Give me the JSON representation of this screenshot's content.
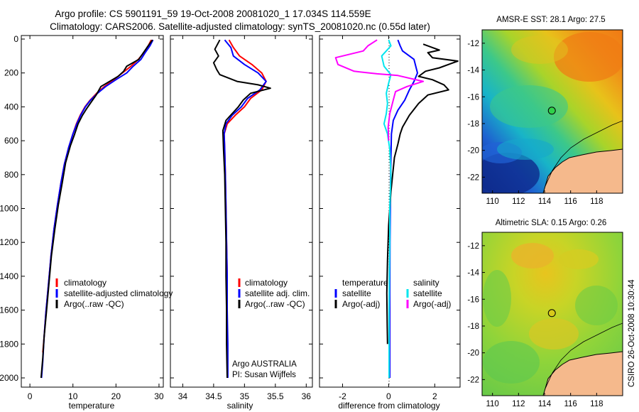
{
  "figure": {
    "title_line1": "Argo profile: CS 5901191_59 19-Oct-2008 20081020_1 17.034S 114.559E",
    "title_line2": "Climatology: CARS2006. Satellite-adjusted climatology: synTS_20081020.nc (0.55d later)",
    "side_caption": "CSIRO 26-Oct-2008 10:30:44"
  },
  "chart_data": [
    {
      "type": "line",
      "xlabel": "temperature",
      "ylabel": "",
      "xlim": [
        -2,
        31
      ],
      "ylim": [
        2050,
        0
      ],
      "xticks": [
        "0",
        "10",
        "20",
        "30"
      ],
      "xtick_values": [
        0,
        10,
        20,
        30
      ],
      "yticks": [
        "0",
        "200",
        "400",
        "600",
        "800",
        "1000",
        "1200",
        "1400",
        "1600",
        "1800",
        "2000"
      ],
      "ytick_values": [
        0,
        200,
        400,
        600,
        800,
        1000,
        1200,
        1400,
        1600,
        1800,
        2000
      ],
      "legend": [
        "climatology",
        "satellite-adjusted climatology",
        "Argo(..raw -QC)"
      ],
      "legend_position": "lower-right",
      "series": [
        {
          "name": "climatology",
          "color": "#ff0000",
          "points": [
            [
              28.2,
              5
            ],
            [
              27.5,
              40
            ],
            [
              26.5,
              80
            ],
            [
              25.2,
              120
            ],
            [
              23.5,
              160
            ],
            [
              21.5,
              200
            ],
            [
              19.5,
              240
            ],
            [
              17.3,
              280
            ],
            [
              15.5,
              320
            ],
            [
              14.0,
              360
            ],
            [
              12.8,
              400
            ],
            [
              11.7,
              450
            ],
            [
              10.8,
              500
            ],
            [
              10.0,
              560
            ],
            [
              9.0,
              640
            ],
            [
              8.0,
              740
            ],
            [
              7.2,
              850
            ],
            [
              6.4,
              980
            ],
            [
              5.6,
              1120
            ],
            [
              4.9,
              1280
            ],
            [
              4.3,
              1450
            ],
            [
              3.7,
              1620
            ],
            [
              3.3,
              1760
            ],
            [
              3.0,
              1850
            ]
          ]
        },
        {
          "name": "satellite-adjusted climatology",
          "color": "#0000ff",
          "points": [
            [
              28.6,
              5
            ],
            [
              27.9,
              40
            ],
            [
              26.8,
              80
            ],
            [
              25.8,
              120
            ],
            [
              24.0,
              160
            ],
            [
              22.5,
              200
            ],
            [
              20.0,
              240
            ],
            [
              17.6,
              280
            ],
            [
              15.7,
              320
            ],
            [
              14.1,
              360
            ],
            [
              12.9,
              400
            ],
            [
              11.8,
              450
            ],
            [
              10.9,
              500
            ],
            [
              10.0,
              560
            ],
            [
              9.0,
              640
            ],
            [
              8.0,
              740
            ],
            [
              7.2,
              850
            ],
            [
              6.4,
              980
            ],
            [
              5.6,
              1120
            ],
            [
              4.9,
              1280
            ],
            [
              4.3,
              1450
            ],
            [
              3.7,
              1620
            ],
            [
              3.3,
              1760
            ],
            [
              3.0,
              1900
            ],
            [
              2.7,
              2000
            ]
          ]
        },
        {
          "name": "Argo(..raw -QC)",
          "color": "#000000",
          "points": [
            [
              28.5,
              5
            ],
            [
              27.2,
              50
            ],
            [
              26.4,
              80
            ],
            [
              25.3,
              120
            ],
            [
              22.5,
              160
            ],
            [
              21.8,
              190
            ],
            [
              20.5,
              220
            ],
            [
              16.5,
              280
            ],
            [
              15.4,
              330
            ],
            [
              14.3,
              370
            ],
            [
              13.2,
              410
            ],
            [
              12.2,
              450
            ],
            [
              11.2,
              500
            ],
            [
              10.4,
              560
            ],
            [
              9.4,
              630
            ],
            [
              8.3,
              730
            ],
            [
              7.5,
              850
            ],
            [
              6.6,
              980
            ],
            [
              5.8,
              1120
            ],
            [
              5.0,
              1280
            ],
            [
              4.4,
              1450
            ],
            [
              3.8,
              1620
            ],
            [
              3.3,
              1760
            ],
            [
              3.0,
              1880
            ],
            [
              2.6,
              2000
            ]
          ]
        }
      ]
    },
    {
      "type": "line",
      "xlabel": "salinity",
      "ylabel": "",
      "xlim": [
        33.8,
        36.1
      ],
      "ylim": [
        2050,
        0
      ],
      "xticks": [
        "34",
        "34.5",
        "35",
        "35.5",
        "36"
      ],
      "xtick_values": [
        34,
        34.5,
        35,
        35.5,
        36
      ],
      "legend": [
        "climatology",
        "satellite adj. clim.",
        "Argo(..raw -QC)"
      ],
      "legend_position": "lower-right",
      "annotation": [
        "Argo AUSTRALIA",
        "PI: Susan Wijffels"
      ],
      "series": [
        {
          "name": "climatology",
          "color": "#ff0000",
          "points": [
            [
              34.75,
              5
            ],
            [
              34.82,
              50
            ],
            [
              34.92,
              100
            ],
            [
              35.12,
              150
            ],
            [
              35.28,
              200
            ],
            [
              35.35,
              250
            ],
            [
              35.28,
              300
            ],
            [
              35.1,
              350
            ],
            [
              35.0,
              400
            ],
            [
              34.85,
              450
            ],
            [
              34.72,
              500
            ],
            [
              34.67,
              560
            ],
            [
              34.68,
              650
            ],
            [
              34.69,
              800
            ],
            [
              34.7,
              1000
            ],
            [
              34.71,
              1200
            ],
            [
              34.72,
              1400
            ],
            [
              34.72,
              1600
            ],
            [
              34.72,
              1800
            ]
          ]
        },
        {
          "name": "satellite adj. clim.",
          "color": "#0000ff",
          "points": [
            [
              34.68,
              5
            ],
            [
              34.78,
              50
            ],
            [
              34.82,
              100
            ],
            [
              35.0,
              150
            ],
            [
              35.22,
              200
            ],
            [
              35.35,
              250
            ],
            [
              35.25,
              300
            ],
            [
              35.05,
              350
            ],
            [
              34.95,
              400
            ],
            [
              34.8,
              450
            ],
            [
              34.7,
              500
            ],
            [
              34.67,
              560
            ],
            [
              34.68,
              650
            ],
            [
              34.69,
              800
            ],
            [
              34.7,
              1000
            ],
            [
              34.71,
              1200
            ],
            [
              34.72,
              1400
            ],
            [
              34.72,
              1600
            ],
            [
              34.73,
              1800
            ],
            [
              34.73,
              2000
            ]
          ]
        },
        {
          "name": "Argo(..raw -QC)",
          "color": "#000000",
          "points": [
            [
              34.6,
              5
            ],
            [
              34.52,
              60
            ],
            [
              34.58,
              100
            ],
            [
              34.5,
              140
            ],
            [
              34.55,
              180
            ],
            [
              34.6,
              210
            ],
            [
              34.88,
              250
            ],
            [
              35.22,
              270
            ],
            [
              35.42,
              290
            ],
            [
              35.1,
              320
            ],
            [
              34.98,
              360
            ],
            [
              34.9,
              400
            ],
            [
              34.8,
              440
            ],
            [
              34.7,
              480
            ],
            [
              34.65,
              540
            ],
            [
              34.66,
              650
            ],
            [
              34.68,
              800
            ],
            [
              34.69,
              1000
            ],
            [
              34.7,
              1200
            ],
            [
              34.7,
              1400
            ],
            [
              34.71,
              1600
            ],
            [
              34.71,
              1800
            ],
            [
              34.72,
              2000
            ]
          ]
        }
      ]
    },
    {
      "type": "line",
      "xlabel": "difference from climatology",
      "ylabel": "",
      "xlim": [
        -3,
        3.1
      ],
      "ylim": [
        2050,
        0
      ],
      "xticks": [
        "-2",
        "0",
        "2"
      ],
      "xtick_values": [
        -2,
        0,
        2
      ],
      "legend_headers": [
        "temperature",
        "salinity"
      ],
      "legend": [
        "satellite",
        "Argo(-adj)",
        "satellite",
        "Argo(-adj)"
      ],
      "legend_position": "lower",
      "series": [
        {
          "name": "satellite",
          "group": "temperature",
          "color": "#0000ff",
          "points": [
            [
              0.4,
              5
            ],
            [
              0.5,
              40
            ],
            [
              0.6,
              70
            ],
            [
              1.1,
              120
            ],
            [
              1.25,
              200
            ],
            [
              1.1,
              250
            ],
            [
              0.9,
              300
            ],
            [
              0.7,
              360
            ],
            [
              0.4,
              420
            ],
            [
              0.2,
              480
            ],
            [
              0.12,
              560
            ],
            [
              0.1,
              700
            ],
            [
              0.08,
              900
            ],
            [
              0.06,
              1200
            ],
            [
              0.05,
              1500
            ],
            [
              0.05,
              1800
            ],
            [
              0.05,
              2000
            ]
          ]
        },
        {
          "name": "Argo(-adj)",
          "group": "temperature",
          "color": "#000000",
          "points": [
            [
              1.5,
              30
            ],
            [
              1.9,
              50
            ],
            [
              2.2,
              65
            ],
            [
              1.7,
              80
            ],
            [
              1.9,
              110
            ],
            [
              3.0,
              130
            ],
            [
              2.2,
              170
            ],
            [
              1.6,
              190
            ],
            [
              1.3,
              220
            ],
            [
              1.9,
              240
            ],
            [
              2.4,
              270
            ],
            [
              2.6,
              300
            ],
            [
              1.7,
              330
            ],
            [
              1.3,
              380
            ],
            [
              0.9,
              450
            ],
            [
              0.6,
              520
            ],
            [
              0.5,
              560
            ],
            [
              0.4,
              620
            ],
            [
              0.25,
              700
            ],
            [
              0.1,
              900
            ],
            [
              0.0,
              1100
            ],
            [
              -0.05,
              1300
            ],
            [
              -0.08,
              1500
            ],
            [
              -0.06,
              1700
            ],
            [
              -0.05,
              1800
            ]
          ]
        },
        {
          "name": "satellite",
          "group": "salinity",
          "color": "#00e5ee",
          "points": [
            [
              0.0,
              5
            ],
            [
              0.1,
              40
            ],
            [
              -0.3,
              100
            ],
            [
              -0.2,
              160
            ],
            [
              0.1,
              210
            ],
            [
              0.0,
              260
            ],
            [
              -0.1,
              320
            ],
            [
              -0.05,
              380
            ],
            [
              -0.1,
              440
            ],
            [
              -0.2,
              500
            ],
            [
              -0.05,
              560
            ],
            [
              0.05,
              650
            ],
            [
              0.1,
              800
            ],
            [
              0.05,
              1000
            ],
            [
              0.05,
              1200
            ],
            [
              0.03,
              1400
            ],
            [
              0.02,
              1600
            ],
            [
              0.02,
              1800
            ],
            [
              0.02,
              2000
            ]
          ]
        },
        {
          "name": "Argo(-adj)",
          "group": "salinity",
          "color": "#ff00ff",
          "points": [
            [
              -0.5,
              5
            ],
            [
              -0.9,
              40
            ],
            [
              -1.1,
              70
            ],
            [
              -2.3,
              110
            ],
            [
              -2.2,
              150
            ],
            [
              -1.5,
              190
            ],
            [
              -0.5,
              205
            ],
            [
              0.4,
              215
            ],
            [
              1.5,
              250
            ],
            [
              0.8,
              280
            ],
            [
              0.3,
              310
            ],
            [
              0.2,
              360
            ],
            [
              0.05,
              440
            ],
            [
              -0.02,
              520
            ],
            [
              0.0,
              600
            ]
          ]
        }
      ]
    }
  ],
  "maps": [
    {
      "title": "AMSR-E SST: 28.1 Argo: 27.5",
      "xticks": [
        "110",
        "112",
        "114",
        "116",
        "118"
      ],
      "xtick_values": [
        110,
        112,
        114,
        116,
        118
      ],
      "yticks": [
        "-12",
        "-14",
        "-16",
        "-18",
        "-20",
        "-22"
      ],
      "ytick_values": [
        -12,
        -14,
        -16,
        -18,
        -20,
        -22
      ],
      "xlim": [
        109.2,
        120
      ],
      "ylim": [
        -23.2,
        -11
      ],
      "argo_location": [
        114.559,
        -17.034
      ],
      "land_color": "#f5b98c",
      "marker_color": "#2fd14a"
    },
    {
      "title": "Altimetric SLA: 0.15 Argo: 0.26",
      "xticks": [
        "110",
        "112",
        "114",
        "116",
        "118"
      ],
      "xtick_values": [
        110,
        112,
        114,
        116,
        118
      ],
      "yticks": [
        "-12",
        "-14",
        "-16",
        "-18",
        "-20",
        "-22"
      ],
      "ytick_values": [
        -12,
        -14,
        -16,
        -18,
        -20,
        -22
      ],
      "xlim": [
        109.2,
        120
      ],
      "ylim": [
        -23.2,
        -11
      ],
      "argo_location": [
        114.559,
        -17.034
      ],
      "land_color": "#f5b98c",
      "marker_color": "#d8c91a"
    }
  ]
}
